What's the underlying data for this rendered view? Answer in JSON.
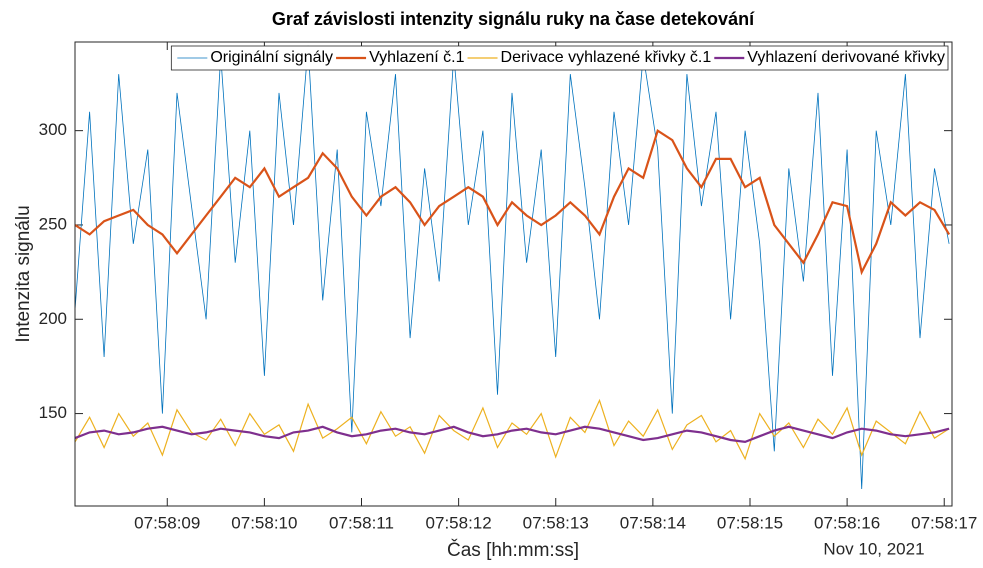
{
  "chart_data": {
    "type": "line",
    "title": "Graf závislosti intenzity signálu ruky na čase detekování",
    "x_label": "Čas [hh:mm:ss]",
    "y_label": "Intenzita signálu",
    "x_date_label": "Nov 10, 2021",
    "x": [
      8.05,
      8.2,
      8.35,
      8.5,
      8.65,
      8.8,
      8.95,
      9.1,
      9.25,
      9.4,
      9.55,
      9.7,
      9.85,
      10,
      10.15,
      10.3,
      10.45,
      10.6,
      10.75,
      10.9,
      11.05,
      11.2,
      11.35,
      11.5,
      11.65,
      11.8,
      11.95,
      12.1,
      12.25,
      12.4,
      12.55,
      12.7,
      12.85,
      13,
      13.15,
      13.3,
      13.45,
      13.6,
      13.75,
      13.9,
      14.05,
      14.2,
      14.35,
      14.5,
      14.65,
      14.8,
      14.95,
      15.1,
      15.25,
      15.4,
      15.55,
      15.7,
      15.85,
      16,
      16.15,
      16.3,
      16.45,
      16.6,
      16.75,
      16.9,
      17.05
    ],
    "series": [
      {
        "name": "Originální signály",
        "color": "#0072BD",
        "width": 0.8,
        "values": [
          205,
          310,
          180,
          330,
          240,
          290,
          150,
          320,
          260,
          200,
          340,
          230,
          300,
          170,
          320,
          250,
          345,
          210,
          290,
          140,
          310,
          260,
          330,
          190,
          280,
          220,
          340,
          250,
          300,
          160,
          320,
          230,
          290,
          180,
          330,
          270,
          200,
          310,
          250,
          340,
          290,
          150,
          330,
          260,
          310,
          200,
          300,
          240,
          130,
          280,
          220,
          320,
          170,
          290,
          110,
          300,
          250,
          330,
          190,
          280,
          240
        ]
      },
      {
        "name": "Vyhlazení č.1",
        "color": "#D95319",
        "width": 2.2,
        "values": [
          250,
          245,
          252,
          255,
          258,
          250,
          245,
          235,
          245,
          255,
          265,
          275,
          270,
          280,
          265,
          270,
          275,
          288,
          280,
          265,
          255,
          265,
          270,
          262,
          250,
          260,
          265,
          270,
          265,
          250,
          262,
          255,
          250,
          255,
          262,
          255,
          245,
          265,
          280,
          275,
          300,
          295,
          280,
          270,
          285,
          285,
          270,
          275,
          250,
          240,
          230,
          245,
          262,
          260,
          225,
          240,
          262,
          255,
          262,
          258,
          245
        ]
      },
      {
        "name": "Derivace vyhlazené křivky č.1",
        "color": "#EDB120",
        "width": 1.2,
        "values": [
          135,
          148,
          132,
          150,
          138,
          145,
          128,
          152,
          140,
          136,
          147,
          133,
          150,
          139,
          144,
          130,
          155,
          137,
          142,
          148,
          134,
          151,
          138,
          143,
          129,
          149,
          141,
          136,
          153,
          132,
          145,
          139,
          150,
          127,
          148,
          140,
          157,
          133,
          146,
          138,
          152,
          131,
          144,
          149,
          135,
          141,
          126,
          150,
          138,
          145,
          132,
          147,
          139,
          153,
          128,
          146,
          140,
          134,
          151,
          137,
          142
        ]
      },
      {
        "name": "Vyhlazení derivované křivky",
        "color": "#7E2F8E",
        "width": 2.2,
        "values": [
          137,
          140,
          141,
          139,
          140,
          142,
          143,
          141,
          139,
          140,
          142,
          141,
          140,
          138,
          137,
          140,
          141,
          143,
          140,
          138,
          139,
          141,
          142,
          140,
          139,
          141,
          143,
          140,
          138,
          139,
          141,
          142,
          140,
          139,
          141,
          143,
          142,
          140,
          138,
          136,
          137,
          139,
          141,
          140,
          138,
          136,
          135,
          138,
          141,
          143,
          141,
          139,
          137,
          140,
          142,
          141,
          139,
          138,
          139,
          140,
          142
        ]
      }
    ],
    "xlim": [
      8.05,
      17.08
    ],
    "xticks": [
      {
        "value": 9,
        "label": "07:58:09"
      },
      {
        "value": 10,
        "label": "07:58:10"
      },
      {
        "value": 11,
        "label": "07:58:11"
      },
      {
        "value": 12,
        "label": "07:58:12"
      },
      {
        "value": 13,
        "label": "07:58:13"
      },
      {
        "value": 14,
        "label": "07:58:14"
      },
      {
        "value": 15,
        "label": "07:58:15"
      },
      {
        "value": 16,
        "label": "07:58:16"
      },
      {
        "value": 17,
        "label": "07:58:17"
      }
    ],
    "ylim": [
      101,
      347
    ],
    "yticks": [
      150,
      200,
      250,
      300
    ],
    "legend": "top-right"
  }
}
